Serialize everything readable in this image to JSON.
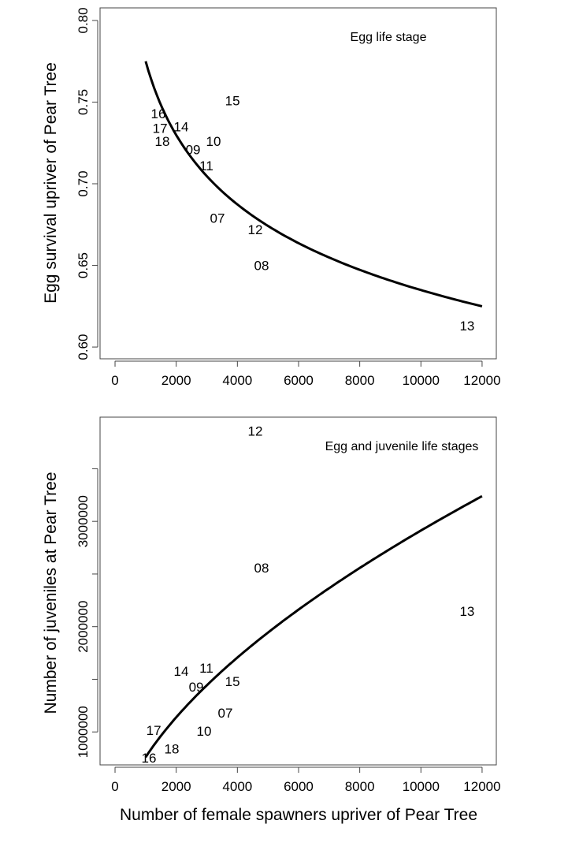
{
  "chart_data": [
    {
      "type": "scatter",
      "title": "",
      "annotation": "Egg life stage",
      "xlabel": "",
      "ylabel": "Egg survival upriver of Pear Tree",
      "xlim": [
        -490,
        12465
      ],
      "ylim": [
        0.5928,
        0.8077
      ],
      "xticks": [
        0,
        2000,
        4000,
        6000,
        8000,
        10000,
        12000
      ],
      "xtick_labels": [
        "0",
        "2000",
        "4000",
        "6000",
        "8000",
        "10000",
        "12000"
      ],
      "yticks": [
        0.6,
        0.65,
        0.7,
        0.75,
        0.8
      ],
      "ytick_labels": [
        "0.60",
        "0.65",
        "0.70",
        "0.75",
        "0.80"
      ],
      "points": [
        {
          "label": "15",
          "x": 3840,
          "y": 0.751
        },
        {
          "label": "16",
          "x": 1416,
          "y": 0.743
        },
        {
          "label": "17",
          "x": 1470,
          "y": 0.734
        },
        {
          "label": "18",
          "x": 1545,
          "y": 0.726
        },
        {
          "label": "14",
          "x": 2163,
          "y": 0.735
        },
        {
          "label": "09",
          "x": 2653,
          "y": 0.721
        },
        {
          "label": "10",
          "x": 3116,
          "y": 0.726
        },
        {
          "label": "11",
          "x": 2987,
          "y": 0.711
        },
        {
          "label": "07",
          "x": 3348,
          "y": 0.679
        },
        {
          "label": "12",
          "x": 4584,
          "y": 0.672
        },
        {
          "label": "08",
          "x": 4790,
          "y": 0.65
        },
        {
          "label": "13",
          "x": 11510,
          "y": 0.613
        }
      ],
      "fit": {
        "model": "power",
        "a_at_1000": 0.775,
        "b": -0.0866,
        "x_range": [
          1000,
          12000
        ]
      }
    },
    {
      "type": "scatter",
      "title": "",
      "annotation": "Egg and juvenile life stages",
      "xlabel": "Number of female spawners upriver of Pear Tree",
      "ylabel": "Number of juveniles at Pear Tree",
      "xlim": [
        -490,
        12465
      ],
      "ylim": [
        687000,
        3990000
      ],
      "xticks": [
        0,
        2000,
        4000,
        6000,
        8000,
        10000,
        12000
      ],
      "xtick_labels": [
        "0",
        "2000",
        "4000",
        "6000",
        "8000",
        "10000",
        "12000"
      ],
      "yticks": [
        1000000,
        1500000,
        2000000,
        2500000,
        3000000,
        3500000
      ],
      "ytick_labels": [
        "1000000",
        "",
        "2000000",
        "",
        "3000000",
        ""
      ],
      "points": [
        {
          "label": "12",
          "x": 4584,
          "y": 3860000
        },
        {
          "label": "08",
          "x": 4790,
          "y": 2560000
        },
        {
          "label": "13",
          "x": 11510,
          "y": 2147000
        },
        {
          "label": "14",
          "x": 2163,
          "y": 1580000
        },
        {
          "label": "11",
          "x": 2987,
          "y": 1607000
        },
        {
          "label": "09",
          "x": 2653,
          "y": 1427000
        },
        {
          "label": "15",
          "x": 3840,
          "y": 1480000
        },
        {
          "label": "07",
          "x": 3348,
          "y": 1120000
        },
        {
          "label": "10",
          "x": 3116,
          "y": 1053000
        },
        {
          "label": "17",
          "x": 1470,
          "y": 913000
        },
        {
          "label": "18",
          "x": 1545,
          "y": 840000
        },
        {
          "label": "16",
          "x": 1416,
          "y": 813000
        }
      ],
      "fit": {
        "model": "power",
        "a_at_1000": 760000,
        "b": 0.5835,
        "x_range": [
          1000,
          12000
        ]
      }
    }
  ]
}
